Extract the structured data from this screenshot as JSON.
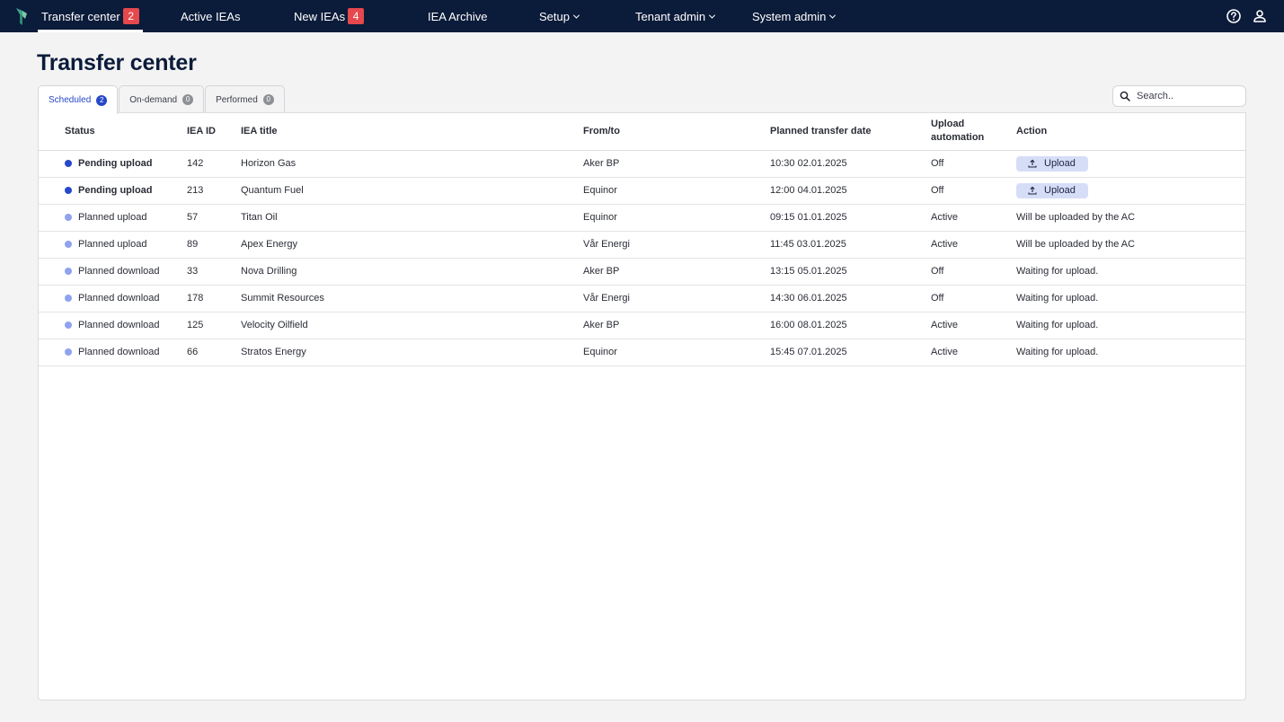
{
  "nav": {
    "items": [
      {
        "label": "Transfer center",
        "badge": "2"
      },
      {
        "label": "Active IEAs"
      },
      {
        "label": "New IEAs",
        "badge": "4"
      },
      {
        "label": "IEA Archive"
      },
      {
        "label": "Setup"
      },
      {
        "label": "Tenant admin"
      },
      {
        "label": "System admin"
      }
    ],
    "icons": [
      "help-icon",
      "user-icon"
    ]
  },
  "page": {
    "title": "Transfer center"
  },
  "tabs": [
    {
      "label": "Scheduled",
      "count": "2"
    },
    {
      "label": "On-demand",
      "count": "0"
    },
    {
      "label": "Performed",
      "count": "0"
    }
  ],
  "search": {
    "placeholder": "Search.."
  },
  "table": {
    "headers": [
      "Status",
      "IEA ID",
      "IEA title",
      "From/to",
      "Planned transfer date",
      "Upload automation",
      "Action"
    ],
    "rows": [
      {
        "status": "Pending upload",
        "id": "142",
        "title": "Horizon Gas",
        "from_to": "Aker BP",
        "date": "10:30 02.01.2025",
        "automation": "Off",
        "action": "Upload"
      },
      {
        "status": "Pending upload",
        "id": "213",
        "title": "Quantum Fuel",
        "from_to": "Equinor",
        "date": "12:00 04.01.2025",
        "automation": "Off",
        "action": "Upload"
      },
      {
        "status": "Planned upload",
        "id": "57",
        "title": "Titan Oil",
        "from_to": "Equinor",
        "date": "09:15 01.01.2025",
        "automation": "Active",
        "action": "Will be uploaded by the AC"
      },
      {
        "status": "Planned upload",
        "id": "89",
        "title": "Apex Energy",
        "from_to": "Vår Energi",
        "date": "11:45 03.01.2025",
        "automation": "Active",
        "action": "Will be uploaded by the AC"
      },
      {
        "status": "Planned download",
        "id": "33",
        "title": "Nova Drilling",
        "from_to": "Aker BP",
        "date": "13:15 05.01.2025",
        "automation": "Off",
        "action": "Waiting for upload."
      },
      {
        "status": "Planned download",
        "id": "178",
        "title": "Summit Resources",
        "from_to": "Vår Energi",
        "date": "14:30 06.01.2025",
        "automation": "Off",
        "action": "Waiting for upload."
      },
      {
        "status": "Planned download",
        "id": "125",
        "title": "Velocity Oilfield",
        "from_to": "Aker BP",
        "date": "16:00 08.01.2025",
        "automation": "Active",
        "action": "Waiting for upload."
      },
      {
        "status": "Planned download",
        "id": "66",
        "title": "Stratos Energy",
        "from_to": "Equinor",
        "date": "15:45 07.01.2025",
        "automation": "Active",
        "action": "Waiting for upload."
      }
    ]
  },
  "colors": {
    "nav_bg": "#0b1b3a",
    "badge_red": "#e5484d",
    "accent_blue": "#2748c9",
    "status_pending": "#2748c9",
    "status_planned": "#8fa2f0",
    "upload_button_bg": "#d6ddf7"
  }
}
